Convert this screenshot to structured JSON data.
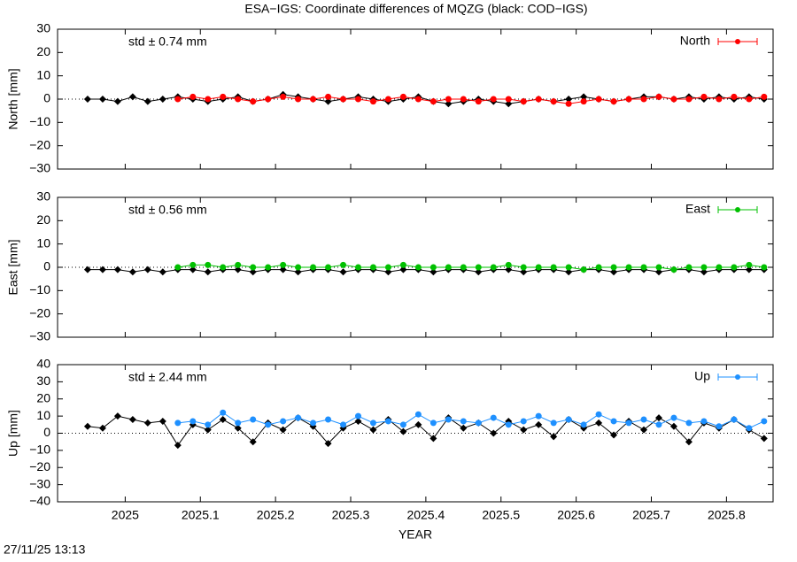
{
  "title": "ESA−IGS: Coordinate differences of MQZG (black: COD−IGS)",
  "xlabel": "YEAR",
  "timestamp": "27/11/25 13:13",
  "chart_data": [
    {
      "type": "line",
      "ylabel": "North [mm]",
      "annotation": "std ± 0.74 mm",
      "annotation_color": "#ff0000",
      "legend": "upper right",
      "xlim": [
        2024.91,
        2025.862
      ],
      "ylim": [
        -30,
        30
      ],
      "yticks": [
        {
          "value": -30,
          "label": "−30"
        },
        {
          "value": -20,
          "label": "−20"
        },
        {
          "value": -10,
          "label": "−10"
        },
        0,
        10,
        20,
        30
      ],
      "x": [
        2024.95,
        2024.97,
        2024.99,
        2025.01,
        2025.03,
        2025.05,
        2025.07,
        2025.09,
        2025.11,
        2025.13,
        2025.15,
        2025.17,
        2025.19,
        2025.21,
        2025.23,
        2025.25,
        2025.27,
        2025.29,
        2025.31,
        2025.33,
        2025.35,
        2025.37,
        2025.39,
        2025.41,
        2025.43,
        2025.45,
        2025.47,
        2025.49,
        2025.51,
        2025.53,
        2025.55,
        2025.57,
        2025.59,
        2025.61,
        2025.63,
        2025.65,
        2025.67,
        2025.69,
        2025.71,
        2025.73,
        2025.75,
        2025.77,
        2025.79,
        2025.81,
        2025.83,
        2025.85
      ],
      "series": [
        {
          "color": "#000000",
          "marker": "diamond",
          "values": [
            0,
            0,
            -1,
            1,
            -1,
            0,
            1,
            0,
            -1,
            0,
            1,
            -1,
            0,
            2,
            1,
            0,
            -1,
            0,
            1,
            0,
            -1,
            0,
            1,
            -1,
            -2,
            -1,
            0,
            -1,
            -2,
            -1,
            0,
            -1,
            0,
            1,
            0,
            -1,
            0,
            1,
            1,
            0,
            1,
            0,
            1,
            0,
            1,
            0
          ]
        },
        {
          "name": "North",
          "color": "#ff0000",
          "marker": "circle",
          "values": [
            null,
            null,
            null,
            null,
            null,
            null,
            0,
            1,
            0,
            1,
            0,
            -1,
            0,
            1,
            0,
            0,
            1,
            0,
            0,
            -1,
            0,
            1,
            0,
            -1,
            0,
            0,
            -1,
            0,
            0,
            -1,
            0,
            -1,
            -2,
            -1,
            0,
            -1,
            0,
            0,
            1,
            0,
            0,
            1,
            0,
            1,
            0,
            1
          ]
        }
      ]
    },
    {
      "type": "line",
      "ylabel": "East [mm]",
      "annotation": "std ± 0.56 mm",
      "annotation_color": "#00c000",
      "legend": "upper right",
      "xlim": [
        2024.91,
        2025.862
      ],
      "ylim": [
        -30,
        30
      ],
      "yticks": [
        {
          "value": -30,
          "label": "−30"
        },
        {
          "value": -20,
          "label": "−20"
        },
        {
          "value": -10,
          "label": "−10"
        },
        0,
        10,
        20,
        30
      ],
      "x": [
        2024.95,
        2024.97,
        2024.99,
        2025.01,
        2025.03,
        2025.05,
        2025.07,
        2025.09,
        2025.11,
        2025.13,
        2025.15,
        2025.17,
        2025.19,
        2025.21,
        2025.23,
        2025.25,
        2025.27,
        2025.29,
        2025.31,
        2025.33,
        2025.35,
        2025.37,
        2025.39,
        2025.41,
        2025.43,
        2025.45,
        2025.47,
        2025.49,
        2025.51,
        2025.53,
        2025.55,
        2025.57,
        2025.59,
        2025.61,
        2025.63,
        2025.65,
        2025.67,
        2025.69,
        2025.71,
        2025.73,
        2025.75,
        2025.77,
        2025.79,
        2025.81,
        2025.83,
        2025.85
      ],
      "series": [
        {
          "color": "#000000",
          "marker": "diamond",
          "values": [
            -1,
            -1,
            -1,
            -2,
            -1,
            -2,
            -1,
            -1,
            -2,
            -1,
            -1,
            -2,
            -1,
            -1,
            -2,
            -1,
            -1,
            -2,
            -1,
            -1,
            -2,
            -1,
            -1,
            -2,
            -1,
            -1,
            -2,
            -1,
            -1,
            -2,
            -1,
            -1,
            -2,
            -1,
            -1,
            -2,
            -1,
            -1,
            -2,
            -1,
            -1,
            -2,
            -1,
            -1,
            -1,
            -1
          ]
        },
        {
          "name": "East",
          "color": "#00c000",
          "marker": "circle",
          "values": [
            null,
            null,
            null,
            null,
            null,
            null,
            0,
            1,
            1,
            0,
            1,
            0,
            0,
            1,
            0,
            0,
            0,
            1,
            0,
            0,
            0,
            1,
            0,
            0,
            0,
            0,
            0,
            0,
            1,
            0,
            0,
            0,
            0,
            -1,
            0,
            0,
            0,
            0,
            0,
            -1,
            0,
            0,
            0,
            0,
            1,
            0
          ]
        }
      ]
    },
    {
      "type": "line",
      "ylabel": "Up [mm]",
      "annotation": "std ± 2.44 mm",
      "annotation_color": "#1e90ff",
      "legend": "upper right",
      "xlim": [
        2024.91,
        2025.862
      ],
      "ylim": [
        -40,
        40
      ],
      "yticks": [
        {
          "value": -40,
          "label": "−40"
        },
        {
          "value": -30,
          "label": "−30"
        },
        {
          "value": -20,
          "label": "−20"
        },
        {
          "value": -10,
          "label": "−10"
        },
        0,
        10,
        20,
        30,
        40
      ],
      "xticks": [
        2025,
        2025.1,
        2025.2,
        2025.3,
        2025.4,
        2025.5,
        2025.6,
        2025.7,
        2025.8
      ],
      "x": [
        2024.95,
        2024.97,
        2024.99,
        2025.01,
        2025.03,
        2025.05,
        2025.07,
        2025.09,
        2025.11,
        2025.13,
        2025.15,
        2025.17,
        2025.19,
        2025.21,
        2025.23,
        2025.25,
        2025.27,
        2025.29,
        2025.31,
        2025.33,
        2025.35,
        2025.37,
        2025.39,
        2025.41,
        2025.43,
        2025.45,
        2025.47,
        2025.49,
        2025.51,
        2025.53,
        2025.55,
        2025.57,
        2025.59,
        2025.61,
        2025.63,
        2025.65,
        2025.67,
        2025.69,
        2025.71,
        2025.73,
        2025.75,
        2025.77,
        2025.79,
        2025.81,
        2025.83,
        2025.85
      ],
      "series": [
        {
          "color": "#000000",
          "marker": "diamond",
          "values": [
            4,
            3,
            10,
            8,
            6,
            7,
            -7,
            5,
            2,
            8,
            3,
            -5,
            6,
            2,
            9,
            4,
            -6,
            3,
            7,
            2,
            8,
            1,
            5,
            -3,
            9,
            3,
            6,
            0,
            7,
            2,
            5,
            -2,
            8,
            3,
            6,
            -1,
            7,
            2,
            9,
            4,
            -5,
            6,
            3,
            8,
            2,
            -3
          ]
        },
        {
          "name": "Up",
          "color": "#1e90ff",
          "marker": "circle",
          "values": [
            null,
            null,
            null,
            null,
            null,
            null,
            6,
            7,
            5,
            12,
            6,
            8,
            5,
            7,
            9,
            6,
            8,
            5,
            10,
            6,
            7,
            5,
            11,
            6,
            8,
            7,
            6,
            9,
            5,
            7,
            10,
            6,
            8,
            5,
            11,
            7,
            6,
            8,
            5,
            9,
            6,
            7,
            4,
            8,
            3,
            7
          ]
        }
      ]
    }
  ]
}
